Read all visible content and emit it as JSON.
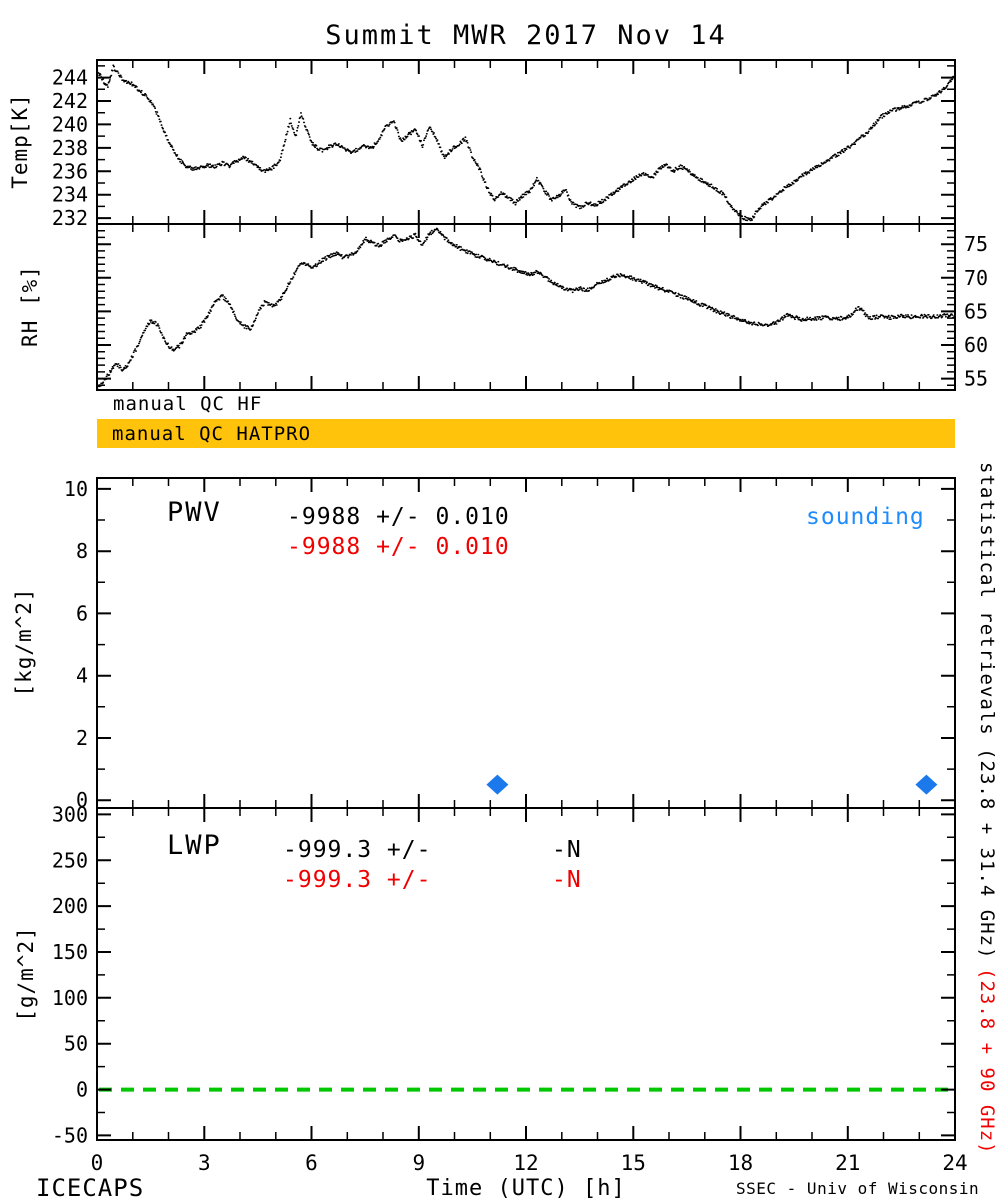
{
  "title": "Summit MWR 2017 Nov 14",
  "footer": {
    "left": "ICECAPS",
    "right": "SSEC - Univ of Wisconsin"
  },
  "qc": {
    "hf_label": "manual QC HF",
    "hatpro_label": "manual QC HATPRO",
    "hatpro_color": "#FFC30B"
  },
  "side_labels": {
    "black": "statistical retrievals (23.8 + 31.4 GHz)",
    "red": "(23.8 + 90 GHz)"
  },
  "annotations": {
    "pwv": {
      "label": "PWV",
      "line1": "-9988 +/- 0.010",
      "line2": "-9988 +/- 0.010",
      "sounding": "sounding"
    },
    "lwp": {
      "label": "LWP",
      "line1": "-999.3 +/-",
      "line1b": "-N",
      "line2": "-999.3 +/-",
      "line2b": "-N"
    }
  },
  "colors": {
    "red": "#F00000",
    "blue": "#1E8CFF",
    "diamond_blue": "#1C79EC",
    "green": "#00C800",
    "orange": "#FFC30B",
    "black": "#000000"
  },
  "chart_data": [
    {
      "type": "scatter",
      "panel": "temp",
      "ylabel": "Temp[K]",
      "x_range": [
        0,
        24
      ],
      "y_range": [
        231.5,
        245.5
      ],
      "y_ticks": [
        232,
        234,
        236,
        238,
        240,
        242,
        244
      ],
      "y_minor": 1,
      "label_side": "left",
      "x": [
        0,
        0.15,
        0.3,
        0.45,
        0.55,
        0.7,
        0.85,
        1,
        1.15,
        1.3,
        1.5,
        1.7,
        1.9,
        2.1,
        2.3,
        2.5,
        2.7,
        2.9,
        3.1,
        3.3,
        3.5,
        3.7,
        3.9,
        4.1,
        4.3,
        4.5,
        4.7,
        4.9,
        5.1,
        5.25,
        5.4,
        5.55,
        5.7,
        5.85,
        6,
        6.15,
        6.3,
        6.5,
        6.7,
        6.9,
        7.1,
        7.3,
        7.5,
        7.7,
        7.9,
        8.1,
        8.3,
        8.5,
        8.7,
        8.9,
        9.1,
        9.3,
        9.5,
        9.7,
        9.9,
        10.1,
        10.3,
        10.5,
        10.7,
        10.9,
        11.1,
        11.3,
        11.5,
        11.7,
        11.9,
        12.1,
        12.3,
        12.5,
        12.7,
        12.9,
        13.1,
        13.3,
        13.5,
        13.7,
        13.9,
        14.1,
        14.3,
        14.5,
        14.7,
        14.9,
        15.1,
        15.3,
        15.5,
        15.7,
        15.9,
        16.1,
        16.3,
        16.5,
        16.7,
        16.9,
        17.1,
        17.3,
        17.5,
        17.7,
        17.9,
        18.1,
        18.3,
        18.5,
        18.7,
        18.9,
        19.1,
        19.3,
        19.5,
        19.7,
        19.9,
        20.1,
        20.4,
        20.7,
        21,
        21.3,
        21.6,
        21.9,
        22.2,
        22.5,
        22.8,
        23.1,
        23.4,
        23.7,
        24
      ],
      "y": [
        244.6,
        243.8,
        243.2,
        244.9,
        244.5,
        243.9,
        243.6,
        243.4,
        243.0,
        242.6,
        242.0,
        240.8,
        239.2,
        238.0,
        237.0,
        236.4,
        236.2,
        236.3,
        236.5,
        236.4,
        236.7,
        236.4,
        236.9,
        237.2,
        236.8,
        236.3,
        236.0,
        236.3,
        236.8,
        238.5,
        240.4,
        239.0,
        240.9,
        239.6,
        238.4,
        238.0,
        237.8,
        238.1,
        238.3,
        237.9,
        237.6,
        237.9,
        238.2,
        238.0,
        238.9,
        239.9,
        240.2,
        238.6,
        239.1,
        239.6,
        238.2,
        239.8,
        238.7,
        237.2,
        237.8,
        238.3,
        238.8,
        237.2,
        236.2,
        234.6,
        233.6,
        234.1,
        233.8,
        233.3,
        233.9,
        234.3,
        235.3,
        234.4,
        233.6,
        233.9,
        234.4,
        233.2,
        232.9,
        233.3,
        233.1,
        233.4,
        233.8,
        234.3,
        234.7,
        235.1,
        235.5,
        235.8,
        235.4,
        236.1,
        236.6,
        236.0,
        236.4,
        236.2,
        235.6,
        235.2,
        234.9,
        234.5,
        234.1,
        233.2,
        232.4,
        232.0,
        231.9,
        232.8,
        233.3,
        233.7,
        234.3,
        234.7,
        235.1,
        235.6,
        235.9,
        236.3,
        236.9,
        237.4,
        238.0,
        238.7,
        239.5,
        240.6,
        241.2,
        241.4,
        241.7,
        242.0,
        242.4,
        243.1,
        244.2
      ]
    },
    {
      "type": "scatter",
      "panel": "rh",
      "ylabel": "RH [%]",
      "x_range": [
        0,
        24
      ],
      "y_range": [
        53.3,
        78
      ],
      "y_ticks": [
        55,
        60,
        65,
        70,
        75
      ],
      "y_minor": 1,
      "label_side": "right",
      "x": [
        0,
        0.15,
        0.3,
        0.45,
        0.55,
        0.7,
        0.85,
        1,
        1.15,
        1.3,
        1.5,
        1.7,
        1.9,
        2.1,
        2.3,
        2.5,
        2.7,
        2.9,
        3.1,
        3.3,
        3.5,
        3.7,
        3.9,
        4.1,
        4.3,
        4.5,
        4.7,
        4.9,
        5.1,
        5.25,
        5.4,
        5.55,
        5.7,
        5.85,
        6,
        6.15,
        6.3,
        6.5,
        6.7,
        6.9,
        7.1,
        7.3,
        7.5,
        7.7,
        7.9,
        8.1,
        8.3,
        8.5,
        8.7,
        8.9,
        9.1,
        9.3,
        9.5,
        9.7,
        9.9,
        10.1,
        10.3,
        10.5,
        10.7,
        10.9,
        11.1,
        11.3,
        11.5,
        11.7,
        11.9,
        12.1,
        12.3,
        12.5,
        12.7,
        12.9,
        13.1,
        13.3,
        13.5,
        13.7,
        13.9,
        14.1,
        14.3,
        14.5,
        14.7,
        14.9,
        15.1,
        15.3,
        15.5,
        15.7,
        15.9,
        16.1,
        16.3,
        16.5,
        16.7,
        16.9,
        17.1,
        17.3,
        17.5,
        17.7,
        17.9,
        18.1,
        18.3,
        18.5,
        18.7,
        18.9,
        19.1,
        19.3,
        19.5,
        19.7,
        19.9,
        20.1,
        20.4,
        20.7,
        21,
        21.3,
        21.6,
        21.9,
        22.2,
        22.5,
        22.8,
        23.1,
        23.4,
        23.7,
        24
      ],
      "y": [
        53.5,
        54.5,
        55.5,
        56.8,
        57.2,
        56.4,
        57.0,
        58.5,
        60.0,
        62.0,
        63.6,
        63.0,
        60.5,
        59.3,
        59.8,
        61.5,
        62.0,
        62.8,
        64.5,
        66.5,
        67.3,
        66.0,
        64.0,
        62.8,
        62.4,
        64.8,
        66.5,
        65.8,
        66.5,
        68.0,
        69.5,
        71.0,
        72.3,
        72.0,
        71.4,
        72.0,
        72.6,
        73.2,
        73.6,
        73.0,
        73.4,
        74.2,
        75.8,
        75.2,
        74.8,
        75.6,
        76.4,
        75.4,
        75.9,
        76.3,
        74.8,
        76.6,
        77.2,
        76.0,
        75.2,
        74.5,
        74.0,
        73.5,
        73.2,
        72.8,
        72.4,
        72.0,
        71.6,
        71.2,
        70.8,
        70.5,
        70.9,
        70.2,
        69.4,
        68.8,
        68.4,
        68.0,
        68.4,
        68.1,
        68.8,
        69.3,
        69.8,
        70.2,
        70.4,
        70.1,
        69.7,
        69.3,
        68.9,
        68.5,
        68.1,
        67.7,
        67.3,
        66.9,
        66.4,
        66.0,
        65.6,
        65.1,
        64.7,
        64.3,
        63.9,
        63.5,
        63.3,
        63.1,
        63.0,
        63.2,
        63.6,
        64.6,
        64.1,
        63.8,
        64.0,
        63.9,
        64.1,
        63.9,
        64.1,
        65.6,
        64.0,
        64.2,
        64.1,
        64.3,
        64.2,
        64.3,
        64.2,
        64.4,
        64.3
      ]
    },
    {
      "type": "scatter",
      "panel": "pwv",
      "ylabel": "[kg/m^2]",
      "x_range": [
        0,
        24
      ],
      "y_range": [
        -0.25,
        10.35
      ],
      "y_ticks": [
        0,
        2,
        4,
        6,
        8,
        10
      ],
      "y_minor": 1,
      "label_side": "left",
      "series": [
        {
          "name": "sounding",
          "marker": "diamond",
          "x": [
            11.2,
            23.2
          ],
          "y": [
            0.5,
            0.5
          ]
        }
      ]
    },
    {
      "type": "line",
      "panel": "lwp",
      "ylabel": "[g/m^2]",
      "xlabel": "Time (UTC) [h]",
      "x_range": [
        0,
        24
      ],
      "x_ticks": [
        0,
        3,
        6,
        9,
        12,
        15,
        18,
        21,
        24
      ],
      "y_range": [
        -55,
        307
      ],
      "y_ticks": [
        -50,
        0,
        50,
        100,
        150,
        200,
        250,
        300
      ],
      "y_minor": 25,
      "label_side": "left",
      "series": [],
      "zero_line": {
        "y": 0,
        "style": "dashed"
      }
    }
  ]
}
